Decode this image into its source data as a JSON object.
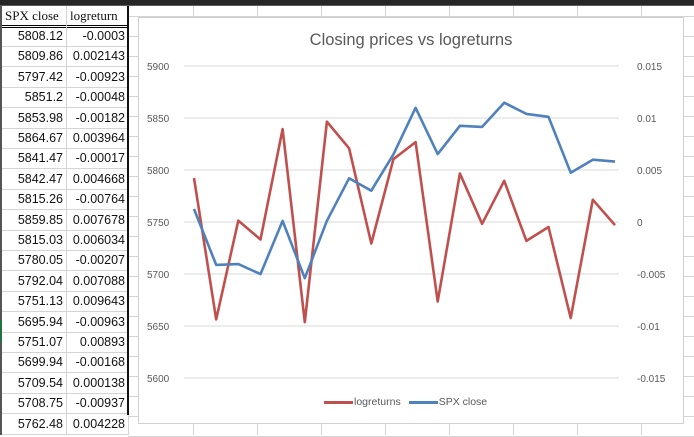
{
  "spreadsheet": {
    "headers": [
      "SPX close",
      "logreturn"
    ],
    "rows": [
      {
        "spx_close": "5808.12",
        "logreturn": "-0.0003"
      },
      {
        "spx_close": "5809.86",
        "logreturn": "0.002143"
      },
      {
        "spx_close": "5797.42",
        "logreturn": "-0.00923"
      },
      {
        "spx_close": "5851.2",
        "logreturn": "-0.00048"
      },
      {
        "spx_close": "5853.98",
        "logreturn": "-0.00182"
      },
      {
        "spx_close": "5864.67",
        "logreturn": "0.003964"
      },
      {
        "spx_close": "5841.47",
        "logreturn": "-0.00017"
      },
      {
        "spx_close": "5842.47",
        "logreturn": "0.004668"
      },
      {
        "spx_close": "5815.26",
        "logreturn": "-0.00764"
      },
      {
        "spx_close": "5859.85",
        "logreturn": "0.007678"
      },
      {
        "spx_close": "5815.03",
        "logreturn": "0.006034"
      },
      {
        "spx_close": "5780.05",
        "logreturn": "-0.00207"
      },
      {
        "spx_close": "5792.04",
        "logreturn": "0.007088"
      },
      {
        "spx_close": "5751.13",
        "logreturn": "0.009643"
      },
      {
        "spx_close": "5695.94",
        "logreturn": "-0.00963"
      },
      {
        "spx_close": "5751.07",
        "logreturn": "0.00893"
      },
      {
        "spx_close": "5699.94",
        "logreturn": "-0.00168"
      },
      {
        "spx_close": "5709.54",
        "logreturn": "0.000138"
      },
      {
        "spx_close": "5708.75",
        "logreturn": "-0.00937"
      },
      {
        "spx_close": "5762.48",
        "logreturn": "0.004228"
      }
    ]
  },
  "chart_data": {
    "type": "line",
    "title": "Closing prices vs logreturns",
    "xlabel": "",
    "ylabel": "",
    "x": [
      1,
      2,
      3,
      4,
      5,
      6,
      7,
      8,
      9,
      10,
      11,
      12,
      13,
      14,
      15,
      16,
      17,
      18,
      19,
      20
    ],
    "series": [
      {
        "name": "logreturns",
        "axis": "secondary",
        "color": "#C0504D",
        "values": [
          0.004228,
          -0.00937,
          0.000138,
          -0.00168,
          0.00893,
          -0.00963,
          0.009643,
          0.007088,
          -0.00207,
          0.006034,
          0.007678,
          -0.00764,
          0.004668,
          -0.00017,
          0.003964,
          -0.00182,
          -0.00048,
          -0.00923,
          0.002143,
          -0.0003
        ]
      },
      {
        "name": "SPX close",
        "axis": "primary",
        "color": "#4F81BD",
        "values": [
          5762.48,
          5708.75,
          5709.54,
          5699.94,
          5751.07,
          5695.94,
          5751.13,
          5792.04,
          5780.05,
          5815.03,
          5859.85,
          5815.26,
          5842.47,
          5841.47,
          5864.67,
          5853.98,
          5851.2,
          5797.42,
          5809.86,
          5808.12
        ]
      }
    ],
    "primary_axis": {
      "ylim": [
        5600,
        5900
      ],
      "ticks": [
        "5900",
        "5850",
        "5800",
        "5750",
        "5700",
        "5650",
        "5600"
      ]
    },
    "secondary_axis": {
      "ylim": [
        -0.015,
        0.015
      ],
      "ticks": [
        "0.015",
        "0.01",
        "0.005",
        "0",
        "-0.005",
        "-0.01",
        "-0.015"
      ]
    },
    "grid": true,
    "legend_position": "bottom",
    "legend": [
      "logreturns",
      "SPX close"
    ]
  }
}
